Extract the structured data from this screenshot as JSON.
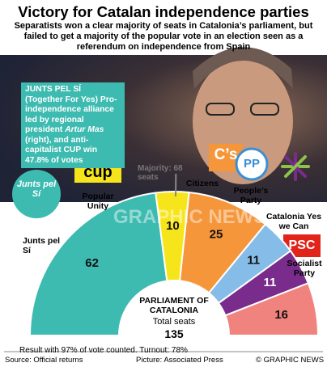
{
  "chart_data": {
    "type": "half-donut",
    "title": "Victory for Catalan independence parties",
    "subtitle": "Separatists won a clear majority of seats in Catalonia’s parliament, but failed to get a majority of the popular vote in an election seen as a referendum on independence from Spain",
    "callout": {
      "heading": "JUNTS PEL SÍ",
      "alias": "(Together For Yes)",
      "text": "Pro-independence alliance led by regional president",
      "person": "Artur Mas",
      "rest": "(right), and anti-capitalist CUP win 47.8% of votes"
    },
    "majority": {
      "label": "Majority: 68 seats",
      "value": 68
    },
    "series": [
      {
        "name": "Junts pel Sí",
        "color": "#3dbbb0",
        "value": 62,
        "logo": "Junts pel Sí"
      },
      {
        "name": "Popular Unity",
        "color": "#f7e51c",
        "value": 10,
        "logo": "cup"
      },
      {
        "name": "Citizens",
        "color": "#f5963b",
        "value": 25,
        "logo": "C’s"
      },
      {
        "name": "People’s Party",
        "color": "#86bce8",
        "value": 11,
        "logo": "PP"
      },
      {
        "name": "Catalonia Yes we Can",
        "color": "#7a2c8c",
        "value": 11
      },
      {
        "name": "Socialist Party",
        "color": "#f0837d",
        "value": 16,
        "logo": "PSC"
      }
    ],
    "center": {
      "label": "PARLIAMENT OF CATALONIA",
      "total_label": "Total seats",
      "total": 135
    },
    "note": "Result with 97% of vote counted. Turnout: 78%",
    "source": "Source:  Official returns",
    "picture": "Picture: Associated Press",
    "credit": "© GRAPHIC NEWS",
    "watermark": "GRAPHIC NEWS"
  }
}
